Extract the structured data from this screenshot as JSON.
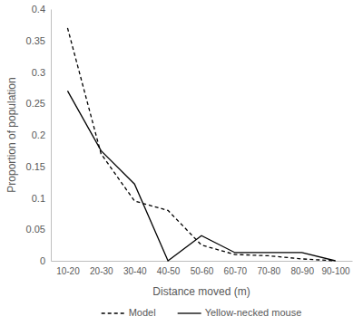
{
  "chart_data": {
    "type": "line",
    "x_label": "Distance moved (m)",
    "y_label": "Proportion of population",
    "categories": [
      "10-20",
      "20-30",
      "30-40",
      "40-50",
      "50-60",
      "60-70",
      "70-80",
      "80-90",
      "90-100"
    ],
    "series": [
      {
        "name": "Model",
        "color": "#000000",
        "line_style": "dashed",
        "values": [
          0.37,
          0.17,
          0.095,
          0.08,
          0.025,
          0.01,
          0.008,
          0.003,
          0.0
        ]
      },
      {
        "name": "Yellow-necked mouse",
        "color": "#000000",
        "line_style": "solid",
        "values": [
          0.27,
          0.175,
          0.122,
          0.0,
          0.04,
          0.013,
          0.013,
          0.013,
          0.0
        ]
      }
    ],
    "ylim": [
      0,
      0.4
    ],
    "yticks": [
      0,
      0.05,
      0.1,
      0.15,
      0.2,
      0.25,
      0.3,
      0.35,
      0.4
    ],
    "grid": false,
    "legend": "bottom"
  }
}
